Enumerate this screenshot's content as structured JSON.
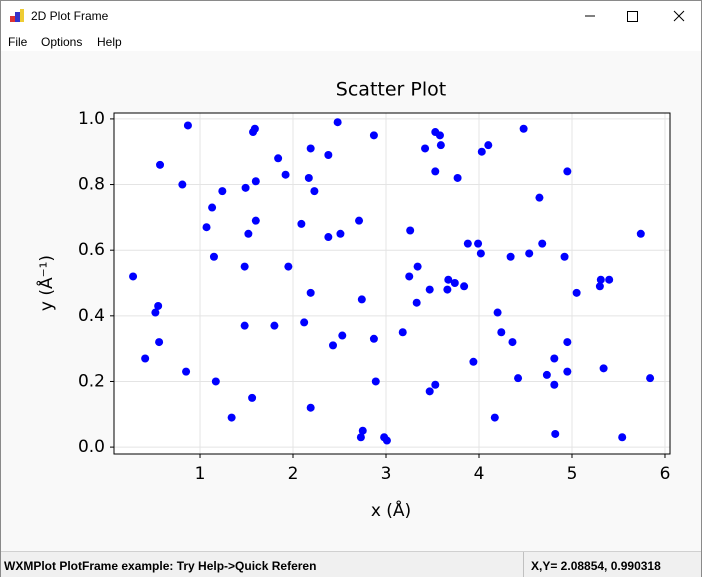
{
  "window": {
    "title": "2D Plot Frame",
    "menu": [
      "File",
      "Options",
      "Help"
    ],
    "status": [
      "WXMPlot PlotFrame example: Try Help->Quick Referen",
      "X,Y= 2.08854, 0.990318"
    ]
  },
  "chart_data": {
    "type": "scatter",
    "title": "Scatter Plot",
    "x_label": "x (Å)",
    "y_label": "y (Å⁻¹)",
    "color": "#0000ff",
    "grid": true,
    "xlim": [
      0.075,
      6.054
    ],
    "ylim": [
      -0.021,
      1.018
    ],
    "xticks": [
      1,
      2,
      3,
      4,
      5,
      6
    ],
    "yticks": [
      {
        "value": 0,
        "label": "0.0"
      },
      {
        "value": 0.2,
        "label": "0.2"
      },
      {
        "value": 0.4,
        "label": "0.4"
      },
      {
        "value": 0.6,
        "label": "0.6"
      },
      {
        "value": 0.8,
        "label": "0.8"
      },
      {
        "value": 1,
        "label": "1.0"
      }
    ],
    "x": [
      0.28,
      0.41,
      0.52,
      0.55,
      0.56,
      0.57,
      0.81,
      0.85,
      0.87,
      1.07,
      1.13,
      1.15,
      1.17,
      1.24,
      1.34,
      1.48,
      1.48,
      1.49,
      1.52,
      1.56,
      1.57,
      1.59,
      1.6,
      1.6,
      1.8,
      1.84,
      1.92,
      1.95,
      2.09,
      2.12,
      2.17,
      2.19,
      2.19,
      2.19,
      2.23,
      2.38,
      2.38,
      2.43,
      2.51,
      2.48,
      2.53,
      2.71,
      2.74,
      2.73,
      2.75,
      2.87,
      2.87,
      2.89,
      2.98,
      3.01,
      3.18,
      3.26,
      3.25,
      3.34,
      3.33,
      3.42,
      3.47,
      3.47,
      3.53,
      3.53,
      3.53,
      3.58,
      3.59,
      3.67,
      3.66,
      3.74,
      3.77,
      3.84,
      3.88,
      3.94,
      3.99,
      4.02,
      4.03,
      4.1,
      4.17,
      4.2,
      4.24,
      4.34,
      4.36,
      4.42,
      4.48,
      4.54,
      4.65,
      4.68,
      4.73,
      4.81,
      4.81,
      4.82,
      4.92,
      4.95,
      4.95,
      4.95,
      5.05,
      5.3,
      5.31,
      5.34,
      5.4,
      5.54,
      5.74,
      5.84
    ],
    "values": [
      0.52,
      0.27,
      0.41,
      0.43,
      0.32,
      0.86,
      0.8,
      0.23,
      0.98,
      0.67,
      0.73,
      0.58,
      0.2,
      0.78,
      0.09,
      0.55,
      0.37,
      0.79,
      0.65,
      0.15,
      0.96,
      0.97,
      0.81,
      0.69,
      0.37,
      0.88,
      0.83,
      0.55,
      0.68,
      0.38,
      0.82,
      0.91,
      0.47,
      0.12,
      0.78,
      0.89,
      0.64,
      0.31,
      0.65,
      0.99,
      0.34,
      0.69,
      0.45,
      0.03,
      0.05,
      0.95,
      0.33,
      0.2,
      0.03,
      0.02,
      0.35,
      0.66,
      0.52,
      0.55,
      0.44,
      0.91,
      0.48,
      0.17,
      0.19,
      0.84,
      0.96,
      0.95,
      0.92,
      0.51,
      0.48,
      0.5,
      0.82,
      0.49,
      0.62,
      0.26,
      0.62,
      0.59,
      0.9,
      0.92,
      0.09,
      0.41,
      0.35,
      0.58,
      0.32,
      0.21,
      0.97,
      0.59,
      0.76,
      0.62,
      0.22,
      0.27,
      0.19,
      0.04,
      0.58,
      0.32,
      0.23,
      0.84,
      0.47,
      0.49,
      0.51,
      0.24,
      0.51,
      0.03,
      0.65,
      0.21
    ]
  }
}
